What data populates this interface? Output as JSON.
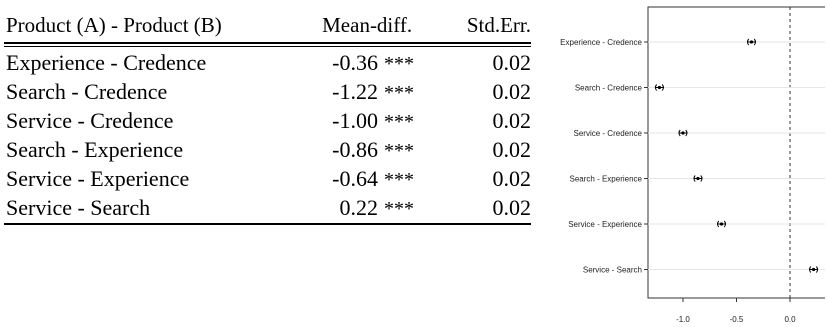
{
  "table": {
    "headers": [
      "Product (A) - Product (B)",
      "Mean-diff.",
      "Std.Err."
    ],
    "rows": [
      {
        "product": "Experience - Credence",
        "mean": "-0.36",
        "sig": "***",
        "se": "0.02"
      },
      {
        "product": "Search - Credence",
        "mean": "-1.22",
        "sig": "***",
        "se": "0.02"
      },
      {
        "product": "Service - Credence",
        "mean": "-1.00",
        "sig": "***",
        "se": "0.02"
      },
      {
        "product": "Search - Experience",
        "mean": "-0.86",
        "sig": "***",
        "se": "0.02"
      },
      {
        "product": "Service - Experience",
        "mean": "-0.64",
        "sig": "***",
        "se": "0.02"
      },
      {
        "product": "Service - Search",
        "mean": "0.22",
        "sig": "***",
        "se": "0.02"
      }
    ]
  },
  "chart_data": {
    "type": "scatter",
    "title": "",
    "xlabel": "",
    "ylabel": "",
    "categories": [
      "Experience - Credence",
      "Search - Credence",
      "Service - Credence",
      "Search - Experience",
      "Service - Experience",
      "Service - Search"
    ],
    "estimates": [
      -0.36,
      -1.22,
      -1.0,
      -0.86,
      -0.64,
      0.22
    ],
    "ci_low": [
      -0.4,
      -1.26,
      -1.04,
      -0.9,
      -0.68,
      0.18
    ],
    "ci_high": [
      -0.32,
      -1.18,
      -0.96,
      -0.82,
      -0.6,
      0.26
    ],
    "xticks": [
      -1.0,
      -0.5,
      0.0
    ],
    "xtick_labels": [
      "-1.0",
      "-0.5",
      "0.0"
    ],
    "xlim": [
      -1.28,
      0.28
    ],
    "reference_line": 0.0,
    "grid": false
  }
}
